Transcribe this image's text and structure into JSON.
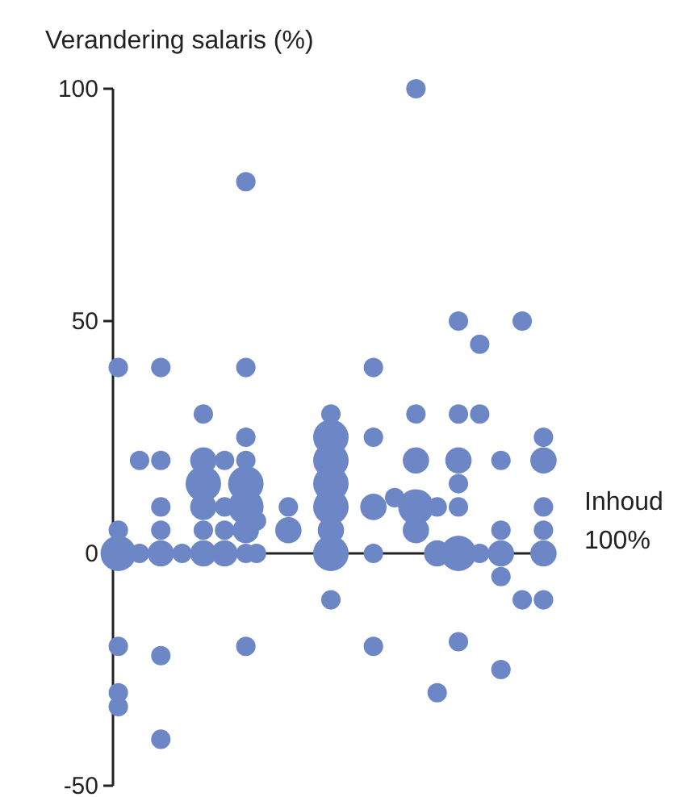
{
  "chart_data": {
    "type": "bubble",
    "ylabel": "Verandering salaris (%)",
    "xlabel": "Inhoud\n100%",
    "categories": [
      null,
      null,
      null,
      null,
      null,
      null,
      null,
      null,
      null,
      null,
      null,
      null,
      null,
      null,
      null,
      null,
      null,
      null,
      null,
      null,
      null,
      null,
      null,
      null,
      null,
      null,
      null,
      null,
      null,
      null,
      null,
      null,
      null,
      null,
      null,
      null,
      null,
      null,
      null,
      null,
      null
    ],
    "ylim": [
      -50,
      100
    ],
    "yticks": [
      -50,
      0,
      50,
      100
    ],
    "series": [
      {
        "color": "#6d87c6",
        "values": [
          40,
          null,
          20,
          null,
          40,
          null,
          0,
          null,
          30,
          null,
          20,
          null,
          80,
          7,
          null,
          null,
          10,
          null,
          null,
          null,
          30,
          null,
          null,
          null,
          40,
          null,
          12,
          null,
          100,
          null,
          10,
          null,
          50,
          null,
          45,
          null,
          20,
          null,
          50,
          null,
          25
        ],
        "sizes": [
          0.3,
          null,
          0.3,
          null,
          0.3,
          null,
          0.3,
          null,
          0.3,
          null,
          0.3,
          null,
          0.3,
          0.3,
          null,
          null,
          0.3,
          null,
          null,
          null,
          0.3,
          null,
          null,
          null,
          0.3,
          null,
          0.3,
          null,
          0.3,
          null,
          0.3,
          null,
          0.3,
          null,
          0.3,
          null,
          0.3,
          null,
          0.3,
          null,
          0.3
        ]
      },
      {
        "color": "#6d87c6",
        "values": [
          5,
          null,
          0,
          null,
          20,
          null,
          null,
          null,
          20,
          null,
          10,
          null,
          40,
          0,
          null,
          null,
          5,
          null,
          null,
          null,
          25,
          null,
          null,
          null,
          25,
          null,
          null,
          null,
          30,
          null,
          0,
          null,
          30,
          null,
          30,
          null,
          5,
          null,
          -10,
          null,
          20
        ],
        "sizes": [
          0.3,
          null,
          0.3,
          null,
          0.3,
          null,
          null,
          null,
          0.55,
          null,
          0.3,
          null,
          0.3,
          0.3,
          null,
          null,
          0.55,
          null,
          null,
          null,
          1,
          null,
          null,
          null,
          0.3,
          null,
          null,
          null,
          0.3,
          null,
          0.55,
          null,
          0.3,
          null,
          0.3,
          null,
          0.3,
          null,
          0.3,
          null,
          0.55
        ]
      },
      {
        "color": "#6d87c6",
        "values": [
          0,
          null,
          null,
          null,
          10,
          null,
          null,
          null,
          15,
          null,
          5,
          null,
          25,
          null,
          null,
          null,
          null,
          null,
          null,
          null,
          20,
          null,
          null,
          null,
          10,
          null,
          null,
          null,
          20,
          null,
          -30,
          null,
          20,
          null,
          0,
          null,
          0,
          null,
          null,
          null,
          10
        ],
        "sizes": [
          1,
          null,
          null,
          null,
          0.3,
          null,
          null,
          null,
          1,
          null,
          0.3,
          null,
          0.3,
          null,
          null,
          null,
          null,
          null,
          null,
          null,
          1,
          null,
          null,
          null,
          0.55,
          null,
          null,
          null,
          0.55,
          null,
          0.3,
          null,
          0.55,
          null,
          0.3,
          null,
          0.55,
          null,
          null,
          null,
          0.3
        ]
      },
      {
        "color": "#6d87c6",
        "values": [
          -20,
          null,
          null,
          null,
          5,
          null,
          null,
          null,
          10,
          null,
          0,
          null,
          20,
          null,
          null,
          null,
          null,
          null,
          null,
          null,
          15,
          null,
          null,
          null,
          0,
          null,
          null,
          null,
          10,
          null,
          null,
          null,
          15,
          null,
          null,
          null,
          -5,
          null,
          null,
          null,
          5
        ],
        "sizes": [
          0.3,
          null,
          null,
          null,
          0.3,
          null,
          null,
          null,
          0.55,
          null,
          0.55,
          null,
          0.3,
          null,
          null,
          null,
          null,
          null,
          null,
          null,
          1,
          null,
          null,
          null,
          0.3,
          null,
          null,
          null,
          1,
          null,
          null,
          null,
          0.3,
          null,
          null,
          null,
          0.3,
          null,
          null,
          null,
          0.3
        ]
      },
      {
        "color": "#6d87c6",
        "values": [
          -30,
          null,
          null,
          null,
          0,
          null,
          null,
          null,
          5,
          null,
          null,
          null,
          15,
          null,
          null,
          null,
          null,
          null,
          null,
          null,
          10,
          null,
          null,
          null,
          -20,
          null,
          null,
          null,
          5,
          null,
          null,
          null,
          10,
          null,
          null,
          null,
          -25,
          null,
          null,
          null,
          0
        ],
        "sizes": [
          0.3,
          null,
          null,
          null,
          0.55,
          null,
          null,
          null,
          0.3,
          null,
          null,
          null,
          1,
          null,
          null,
          null,
          null,
          null,
          null,
          null,
          1,
          null,
          null,
          null,
          0.3,
          null,
          null,
          null,
          0.55,
          null,
          null,
          null,
          0.3,
          null,
          null,
          null,
          0.3,
          null,
          null,
          null,
          0.55
        ]
      },
      {
        "color": "#6d87c6",
        "values": [
          -33,
          null,
          null,
          null,
          -22,
          null,
          null,
          null,
          0,
          null,
          null,
          null,
          10,
          null,
          null,
          null,
          null,
          null,
          null,
          null,
          5,
          null,
          null,
          null,
          null,
          null,
          null,
          null,
          null,
          null,
          null,
          null,
          0,
          null,
          null,
          null,
          null,
          null,
          null,
          null,
          -10
        ],
        "sizes": [
          0.3,
          null,
          null,
          null,
          0.3,
          null,
          null,
          null,
          0.55,
          null,
          null,
          null,
          1,
          null,
          null,
          null,
          null,
          null,
          null,
          null,
          0.55,
          null,
          null,
          null,
          null,
          null,
          null,
          null,
          null,
          null,
          null,
          null,
          1,
          null,
          null,
          null,
          null,
          null,
          null,
          null,
          0.3
        ]
      },
      {
        "color": "#6d87c6",
        "values": [
          null,
          null,
          null,
          null,
          -40,
          null,
          null,
          null,
          null,
          null,
          null,
          null,
          5,
          null,
          null,
          null,
          null,
          null,
          null,
          null,
          0,
          null,
          null,
          null,
          null,
          null,
          null,
          null,
          null,
          null,
          null,
          null,
          -19,
          null,
          null,
          null,
          null,
          null,
          null,
          null,
          null
        ],
        "sizes": [
          null,
          null,
          null,
          null,
          0.3,
          null,
          null,
          null,
          null,
          null,
          null,
          null,
          0.55,
          null,
          null,
          null,
          null,
          null,
          null,
          null,
          1,
          null,
          null,
          null,
          null,
          null,
          null,
          null,
          null,
          null,
          null,
          null,
          0.3,
          null,
          null,
          null,
          null,
          null,
          null,
          null,
          null
        ]
      },
      {
        "color": "#6d87c6",
        "values": [
          null,
          null,
          null,
          null,
          null,
          null,
          null,
          null,
          null,
          null,
          null,
          null,
          0,
          null,
          null,
          null,
          null,
          null,
          null,
          null,
          -10,
          null,
          null,
          null,
          null,
          null,
          null,
          null,
          null,
          null,
          null,
          null,
          null,
          null,
          null,
          null,
          null,
          null,
          null,
          null,
          null
        ],
        "sizes": [
          null,
          null,
          null,
          null,
          null,
          null,
          null,
          null,
          null,
          null,
          null,
          null,
          0.3,
          null,
          null,
          null,
          null,
          null,
          null,
          null,
          0.3,
          null,
          null,
          null,
          null,
          null,
          null,
          null,
          null,
          null,
          null,
          null,
          null,
          null,
          null,
          null,
          null,
          null,
          null,
          null,
          null
        ]
      },
      {
        "color": "#6d87c6",
        "values": [
          null,
          null,
          null,
          null,
          null,
          null,
          null,
          null,
          null,
          null,
          null,
          null,
          -20,
          null,
          null,
          null,
          null,
          null,
          null,
          null,
          null,
          null,
          null,
          null,
          null,
          null,
          null,
          null,
          null,
          null,
          null,
          null,
          null,
          null,
          null,
          null,
          null,
          null,
          null,
          null,
          null
        ],
        "sizes": [
          null,
          null,
          null,
          null,
          null,
          null,
          null,
          null,
          null,
          null,
          null,
          null,
          0.3,
          null,
          null,
          null,
          null,
          null,
          null,
          null,
          null,
          null,
          null,
          null,
          null,
          null,
          null,
          null,
          null,
          null,
          null,
          null,
          null,
          null,
          null,
          null,
          null,
          null,
          null,
          null,
          null
        ]
      }
    ]
  }
}
